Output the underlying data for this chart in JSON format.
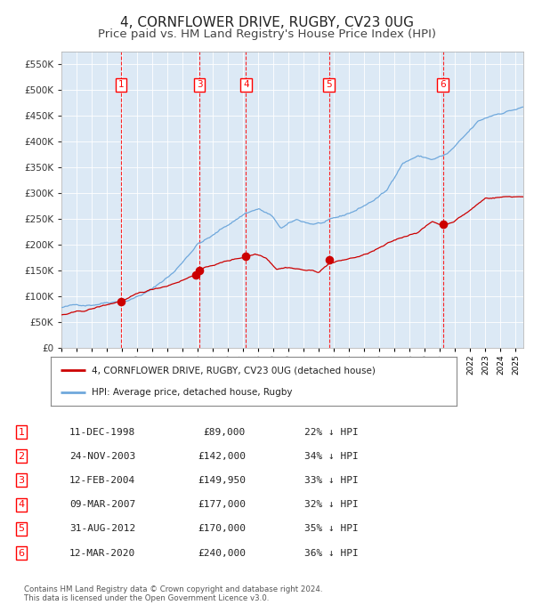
{
  "title": "4, CORNFLOWER DRIVE, RUGBY, CV23 0UG",
  "subtitle": "Price paid vs. HM Land Registry's House Price Index (HPI)",
  "title_fontsize": 11,
  "subtitle_fontsize": 9.5,
  "fig_bg_color": "#ffffff",
  "plot_bg_color": "#dce9f5",
  "ylim": [
    0,
    575000
  ],
  "yticks": [
    0,
    50000,
    100000,
    150000,
    200000,
    250000,
    300000,
    350000,
    400000,
    450000,
    500000,
    550000
  ],
  "xlim_start": 1995.0,
  "xlim_end": 2025.5,
  "hpi_color": "#6fa8dc",
  "price_color": "#cc0000",
  "marker_color": "#cc0000",
  "sale_dates_num": [
    1998.94,
    2003.9,
    2004.12,
    2007.19,
    2012.67,
    2020.19
  ],
  "sale_prices": [
    89000,
    142000,
    149950,
    177000,
    170000,
    240000
  ],
  "sale_labels": [
    "1",
    "2",
    "3",
    "4",
    "5",
    "6"
  ],
  "visible_indices": [
    0,
    2,
    3,
    4,
    5
  ],
  "legend_line1": "4, CORNFLOWER DRIVE, RUGBY, CV23 0UG (detached house)",
  "legend_line2": "HPI: Average price, detached house, Rugby",
  "table_data": [
    [
      "1",
      "11-DEC-1998",
      "£89,000",
      "22% ↓ HPI"
    ],
    [
      "2",
      "24-NOV-2003",
      "£142,000",
      "34% ↓ HPI"
    ],
    [
      "3",
      "12-FEB-2004",
      "£149,950",
      "33% ↓ HPI"
    ],
    [
      "4",
      "09-MAR-2007",
      "£177,000",
      "32% ↓ HPI"
    ],
    [
      "5",
      "31-AUG-2012",
      "£170,000",
      "35% ↓ HPI"
    ],
    [
      "6",
      "12-MAR-2020",
      "£240,000",
      "36% ↓ HPI"
    ]
  ],
  "footer_text": "Contains HM Land Registry data © Crown copyright and database right 2024.\nThis data is licensed under the Open Government Licence v3.0.",
  "hpi_anchors": [
    [
      1995.0,
      78000
    ],
    [
      1997.0,
      85000
    ],
    [
      1998.0,
      92000
    ],
    [
      1999.5,
      100000
    ],
    [
      2001.0,
      120000
    ],
    [
      2002.5,
      155000
    ],
    [
      2004.0,
      210000
    ],
    [
      2005.0,
      225000
    ],
    [
      2007.2,
      270000
    ],
    [
      2008.0,
      278000
    ],
    [
      2008.8,
      265000
    ],
    [
      2009.5,
      238000
    ],
    [
      2010.5,
      252000
    ],
    [
      2011.5,
      245000
    ],
    [
      2012.5,
      248000
    ],
    [
      2013.5,
      255000
    ],
    [
      2014.5,
      268000
    ],
    [
      2015.5,
      285000
    ],
    [
      2016.5,
      305000
    ],
    [
      2017.5,
      360000
    ],
    [
      2018.5,
      375000
    ],
    [
      2019.5,
      368000
    ],
    [
      2020.5,
      378000
    ],
    [
      2021.5,
      405000
    ],
    [
      2022.5,
      435000
    ],
    [
      2023.5,
      448000
    ],
    [
      2024.5,
      458000
    ],
    [
      2025.5,
      465000
    ]
  ],
  "price_anchors": [
    [
      1995.0,
      64000
    ],
    [
      1996.5,
      70000
    ],
    [
      1998.94,
      89000
    ],
    [
      2000.0,
      100000
    ],
    [
      2002.0,
      118000
    ],
    [
      2003.9,
      142000
    ],
    [
      2004.12,
      149950
    ],
    [
      2005.0,
      160000
    ],
    [
      2006.0,
      168000
    ],
    [
      2007.19,
      177000
    ],
    [
      2007.8,
      183000
    ],
    [
      2008.5,
      178000
    ],
    [
      2009.2,
      158000
    ],
    [
      2010.0,
      162000
    ],
    [
      2011.0,
      157000
    ],
    [
      2012.0,
      153000
    ],
    [
      2012.67,
      170000
    ],
    [
      2013.5,
      175000
    ],
    [
      2015.0,
      185000
    ],
    [
      2017.0,
      210000
    ],
    [
      2018.5,
      228000
    ],
    [
      2019.5,
      248000
    ],
    [
      2020.0,
      243000
    ],
    [
      2020.19,
      240000
    ],
    [
      2021.0,
      252000
    ],
    [
      2022.0,
      272000
    ],
    [
      2023.0,
      295000
    ],
    [
      2024.0,
      298000
    ],
    [
      2025.5,
      300000
    ]
  ],
  "hpi_seed": 42
}
